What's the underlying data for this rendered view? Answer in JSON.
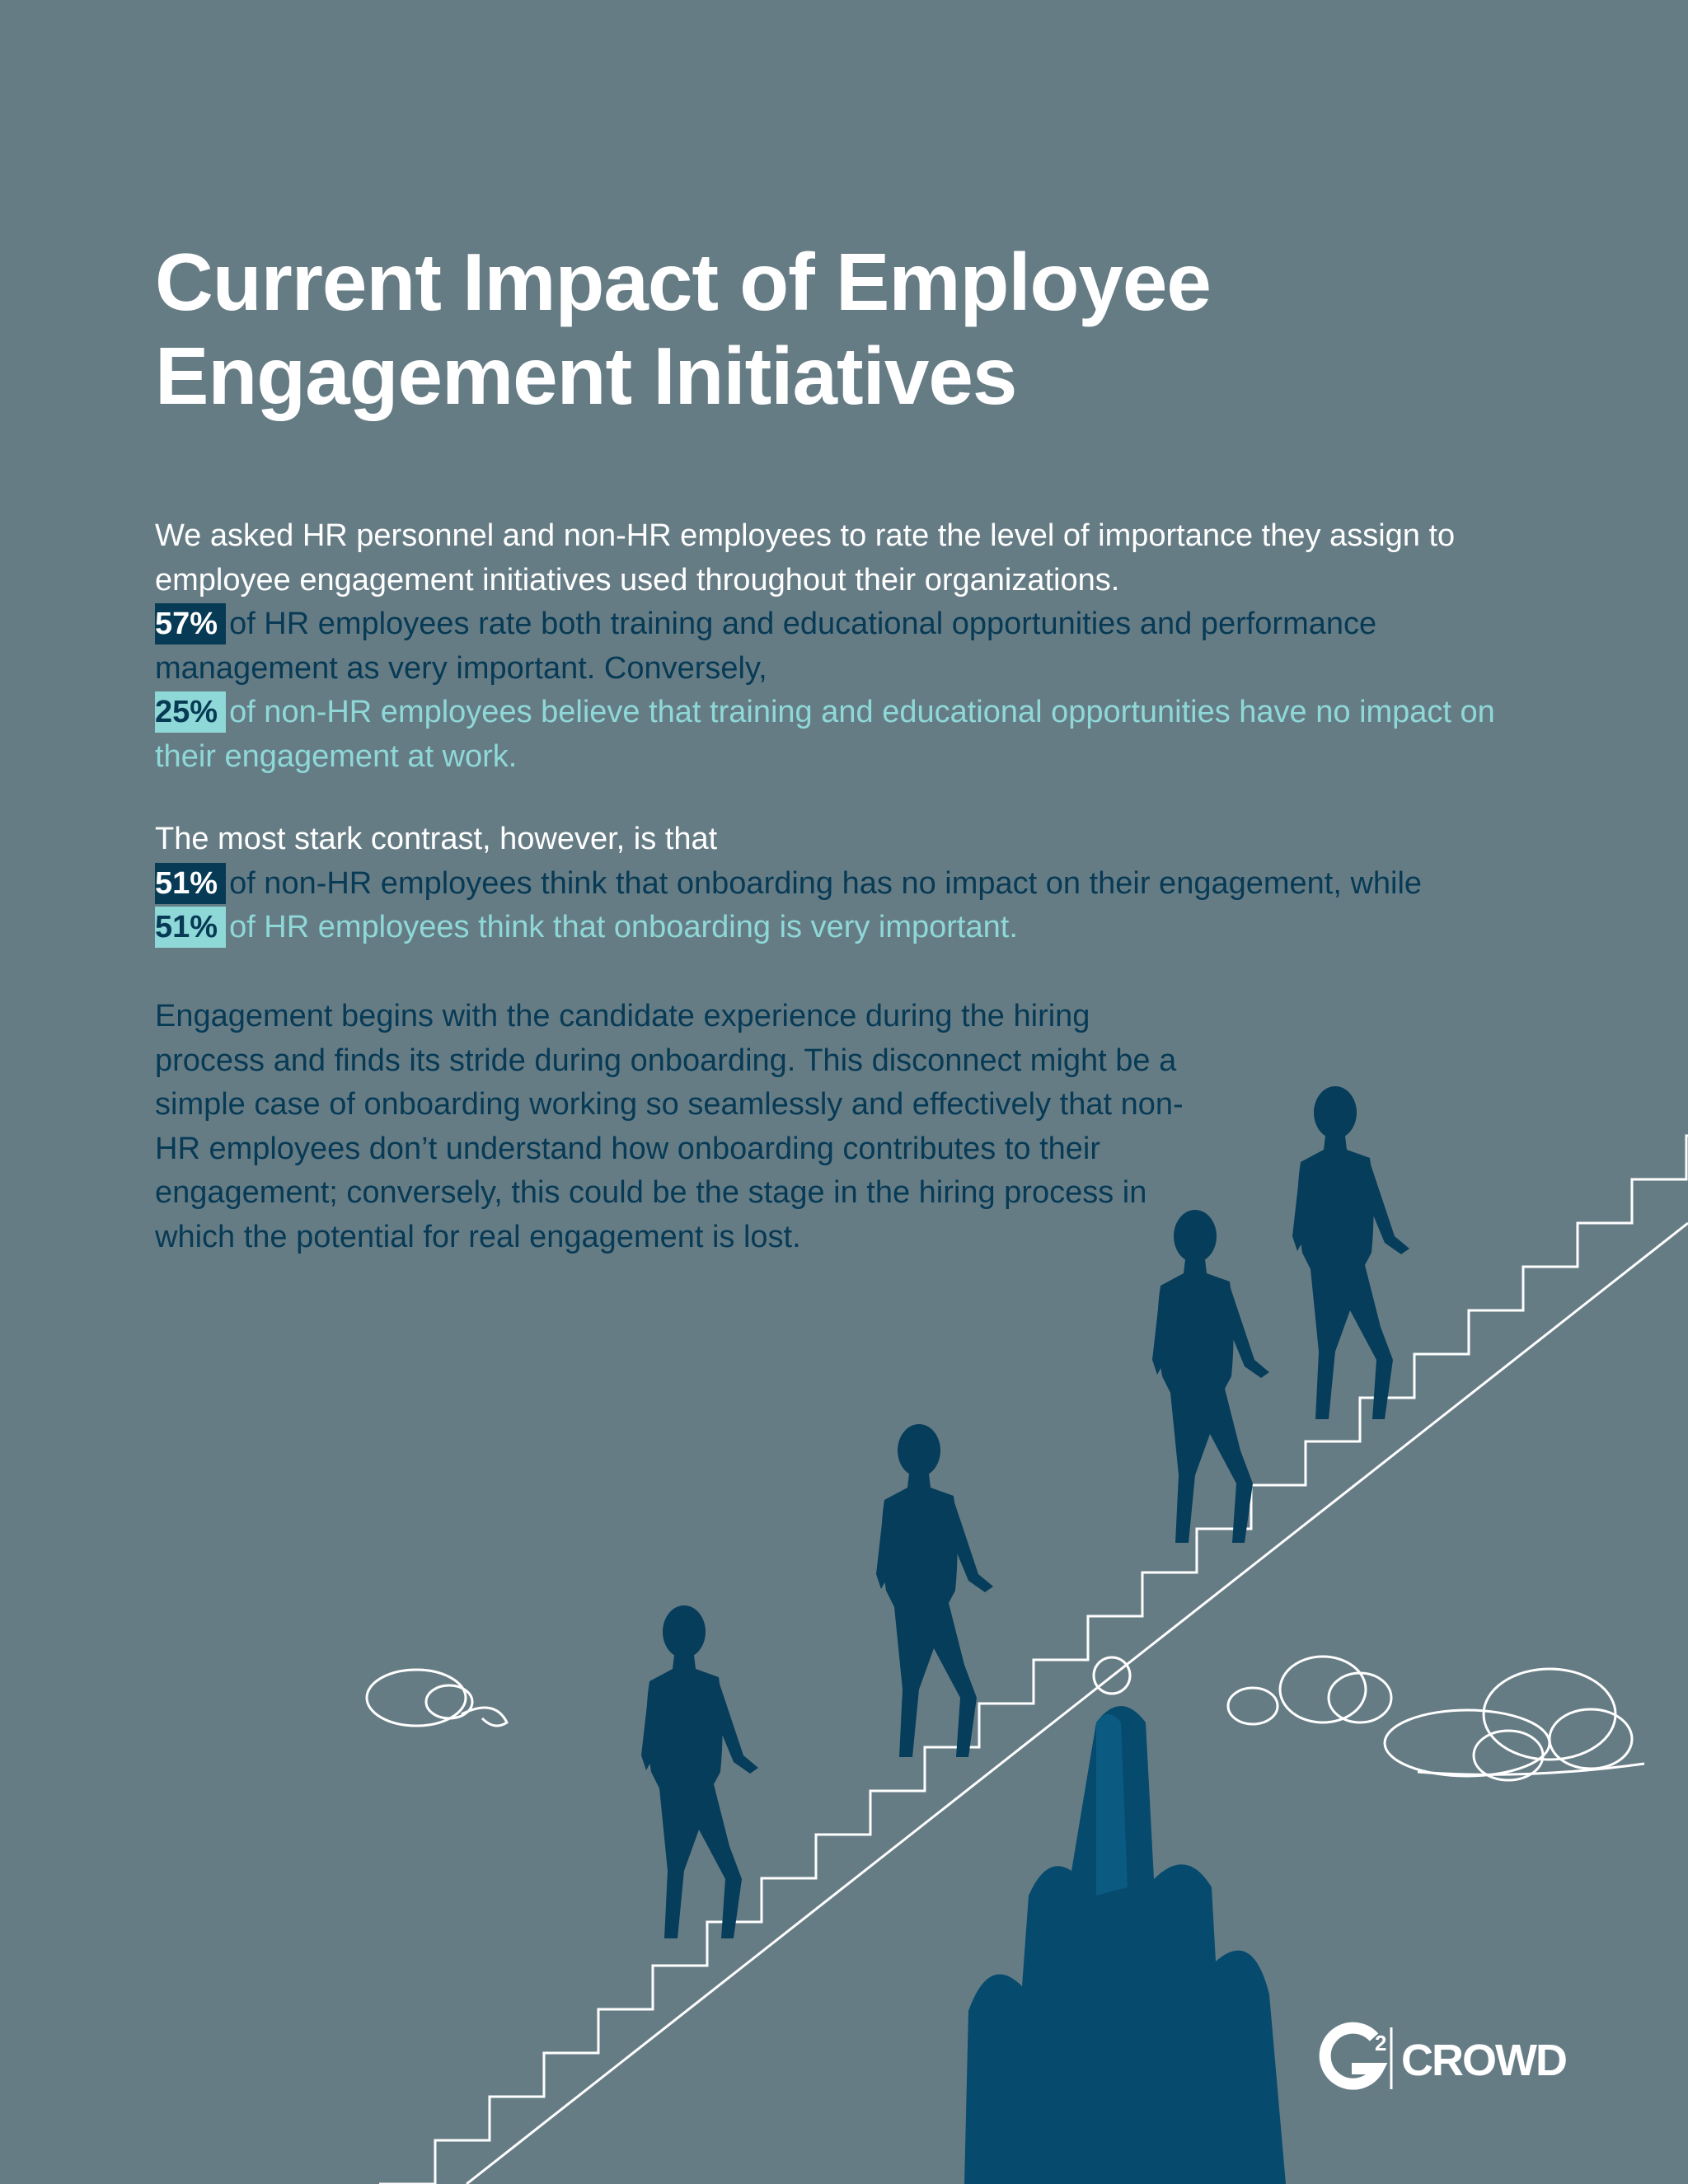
{
  "title": "Current Impact of Employee Engagement Initiatives",
  "intro": {
    "text": "We asked HR personnel and non-HR employees to rate the level of importance they assign to employee engagement initiatives used throughout their organizations.",
    "stats": [
      {
        "figure": "57%",
        "text": "of HR employees rate both training and educational opportunities and performance management as very important. Conversely,"
      },
      {
        "figure": "25%",
        "text": "of non-HR employees believe that training and educational opportunities have no impact on their engagement at work."
      }
    ]
  },
  "contrast": {
    "text": "The most stark contrast, however, is that",
    "stats": [
      {
        "figure": "51%",
        "text": "of non-HR employees think that onboarding has no impact on their engagement, while"
      },
      {
        "figure": "51%",
        "text": "of HR employees think that onboarding is very important."
      }
    ]
  },
  "conclusion": "Engagement begins with the candidate experience during the hiring process and finds its stride during onboarding. This disconnect might be a simple case of onboarding working so seamlessly and effectively that non-HR employees don’t understand how onboarding contributes to their engagement; conversely, this could be the stage in the hiring process in which the potential for real engagement is lost.",
  "logo": {
    "mark": "2",
    "name": "CROWD"
  }
}
